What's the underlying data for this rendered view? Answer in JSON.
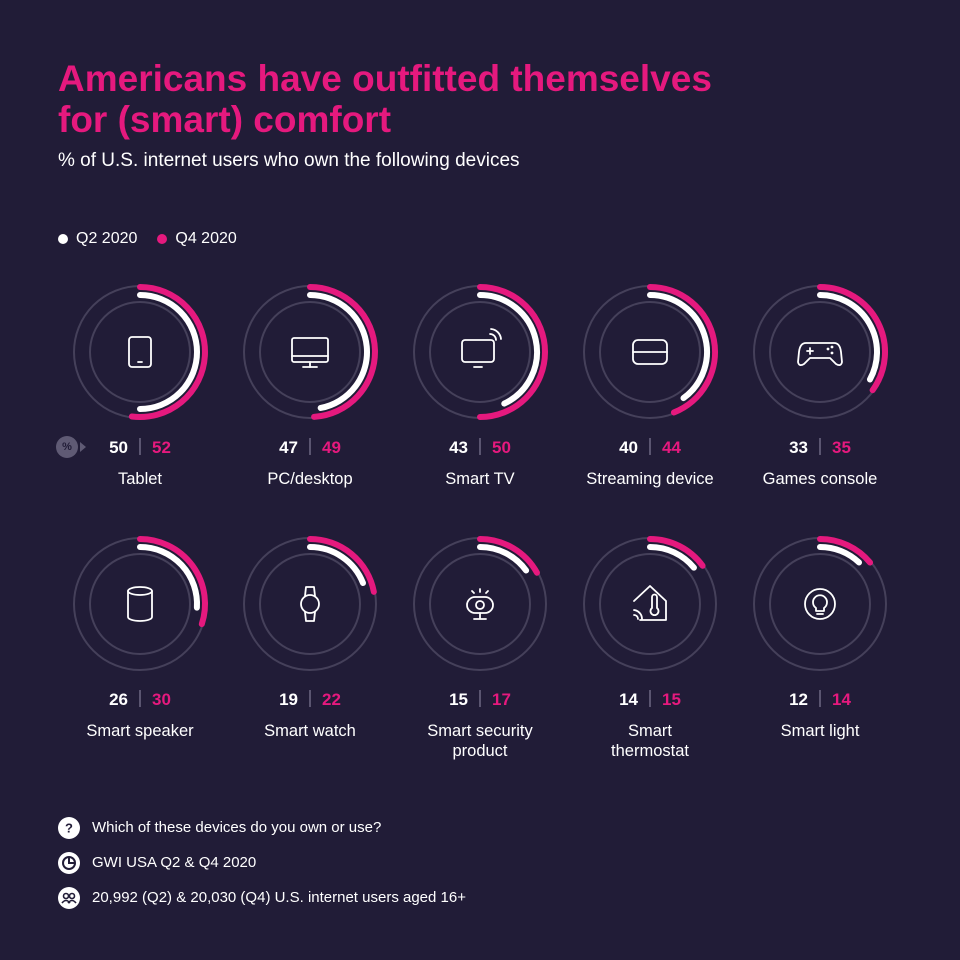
{
  "title": "Americans have outfitted themselves for (smart) comfort",
  "subtitle": "% of U.S. internet users who own the following devices",
  "legend": [
    {
      "label": "Q2 2020",
      "color": "#ffffff"
    },
    {
      "label": "Q4 2020",
      "color": "#e5197e"
    }
  ],
  "percent_badge": "%",
  "colors": {
    "background": "#211c37",
    "accent": "#e5197e",
    "track": "#45405a"
  },
  "chart_data": {
    "type": "radial-bar",
    "title": "Americans have outfitted themselves for (smart) comfort",
    "subtitle": "% of U.S. internet users who own the following devices",
    "series": [
      {
        "name": "Q2 2020",
        "color": "#ffffff"
      },
      {
        "name": "Q4 2020",
        "color": "#e5197e"
      }
    ],
    "devices": [
      {
        "label": "Tablet",
        "icon": "tablet-icon",
        "q2": 50,
        "q4": 52
      },
      {
        "label": "PC/desktop",
        "icon": "desktop-icon",
        "q2": 47,
        "q4": 49
      },
      {
        "label": "Smart TV",
        "icon": "smart-tv-icon",
        "q2": 43,
        "q4": 50
      },
      {
        "label": "Streaming device",
        "icon": "streaming-device-icon",
        "q2": 40,
        "q4": 44
      },
      {
        "label": "Games console",
        "icon": "gamepad-icon",
        "q2": 33,
        "q4": 35
      },
      {
        "label": "Smart speaker",
        "icon": "speaker-icon",
        "q2": 26,
        "q4": 30
      },
      {
        "label": "Smart watch",
        "icon": "watch-icon",
        "q2": 19,
        "q4": 22
      },
      {
        "label": "Smart security product",
        "icon": "security-camera-icon",
        "q2": 15,
        "q4": 17
      },
      {
        "label": "Smart thermostat",
        "icon": "thermostat-icon",
        "q2": 14,
        "q4": 15
      },
      {
        "label": "Smart light",
        "icon": "light-bulb-icon",
        "q2": 12,
        "q4": 14
      }
    ],
    "scale_max": 100
  },
  "footer": {
    "question": "Which of these devices do you own or use?",
    "source": "GWI USA Q2 & Q4 2020",
    "base": "20,992 (Q2) & 20,030 (Q4) U.S. internet users aged 16+"
  }
}
